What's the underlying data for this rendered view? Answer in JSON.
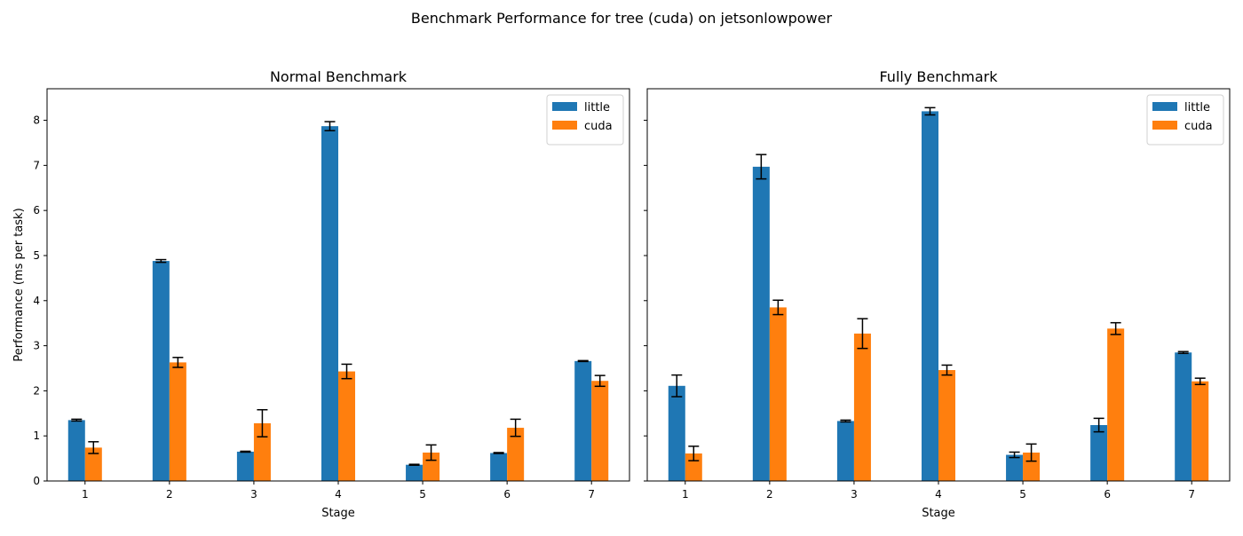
{
  "figure": {
    "suptitle": "Benchmark Performance for tree (cuda) on jetsonlowpower",
    "ylabel": "Performance (ms per task)",
    "xlabel": "Stage"
  },
  "colors": {
    "little": "#1f77b4",
    "cuda": "#ff7f0e"
  },
  "chart_data": [
    {
      "type": "bar",
      "title": "Normal Benchmark",
      "xlabel": "Stage",
      "ylabel": "Performance (ms per task)",
      "categories": [
        "1",
        "2",
        "3",
        "4",
        "5",
        "6",
        "7"
      ],
      "ylim": [
        0,
        8.7
      ],
      "yticks": [
        0,
        1,
        2,
        3,
        4,
        5,
        6,
        7,
        8
      ],
      "legend": "top-right",
      "series": [
        {
          "name": "little",
          "values": [
            1.35,
            4.88,
            0.65,
            7.87,
            0.36,
            0.62,
            2.66
          ],
          "errors": [
            0.02,
            0.03,
            0.01,
            0.1,
            0.01,
            0.01,
            0.01
          ]
        },
        {
          "name": "cuda",
          "values": [
            0.74,
            2.63,
            1.28,
            2.43,
            0.63,
            1.18,
            2.22
          ],
          "errors": [
            0.13,
            0.11,
            0.3,
            0.16,
            0.17,
            0.19,
            0.12
          ]
        }
      ]
    },
    {
      "type": "bar",
      "title": "Fully Benchmark",
      "xlabel": "Stage",
      "categories": [
        "1",
        "2",
        "3",
        "4",
        "5",
        "6",
        "7"
      ],
      "ylim": [
        0,
        8.7
      ],
      "yticks": [
        0,
        1,
        2,
        3,
        4,
        5,
        6,
        7,
        8
      ],
      "legend": "top-right",
      "series": [
        {
          "name": "little",
          "values": [
            2.11,
            6.97,
            1.33,
            8.2,
            0.58,
            1.24,
            2.85
          ],
          "errors": [
            0.24,
            0.27,
            0.02,
            0.08,
            0.06,
            0.15,
            0.02
          ]
        },
        {
          "name": "cuda",
          "values": [
            0.61,
            3.85,
            3.27,
            2.46,
            0.63,
            3.38,
            2.21
          ],
          "errors": [
            0.16,
            0.16,
            0.33,
            0.11,
            0.19,
            0.13,
            0.07
          ]
        }
      ]
    }
  ]
}
